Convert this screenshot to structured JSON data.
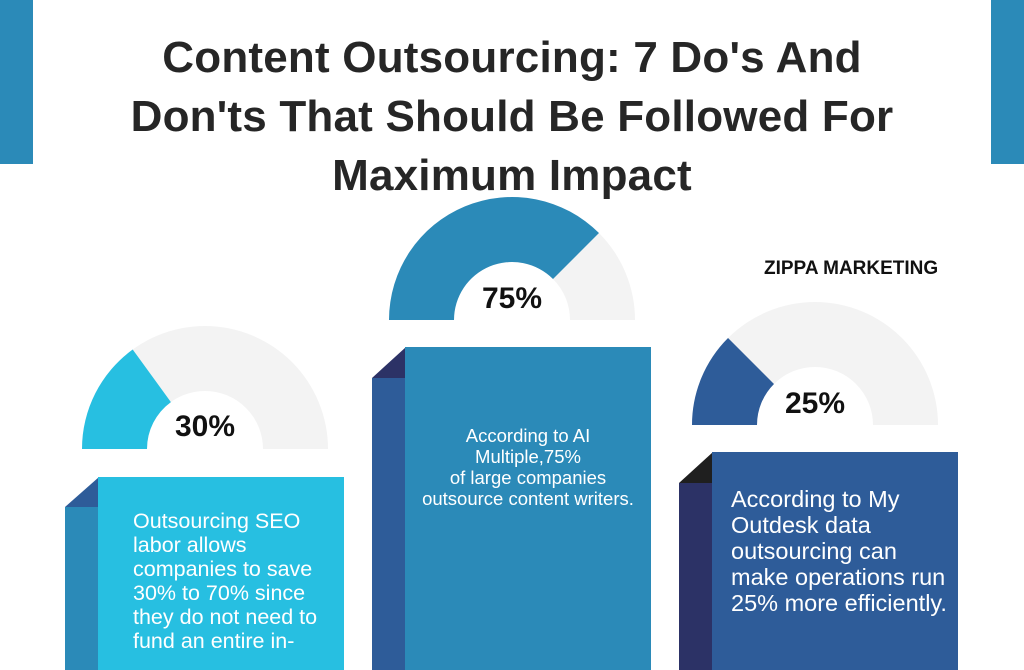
{
  "header": {
    "title": "Content Outsourcing: 7 Do's And Don'ts That Should Be Followed For Maximum Impact",
    "brand": "ZIPPA MARKETING"
  },
  "colors": {
    "accent_blue": "#2b8ab8",
    "cyan": "#27bfe1",
    "navy": "#2e5c99",
    "dark_navy": "#2c3266",
    "track_grey": "#f3f3f3"
  },
  "stats": [
    {
      "percent_label": "30%",
      "fraction": 0.3,
      "text": "Outsourcing SEO labor allows companies to save 30% to 70% since they do not need to fund an entire in-"
    },
    {
      "percent_label": "75%",
      "fraction": 0.75,
      "text": "According to AI Multiple,75%\nof large  companies outsource content writers."
    },
    {
      "percent_label": "25%",
      "fraction": 0.25,
      "text": "According to My Outdesk data outsourcing can make operations run 25% more efficiently."
    }
  ]
}
